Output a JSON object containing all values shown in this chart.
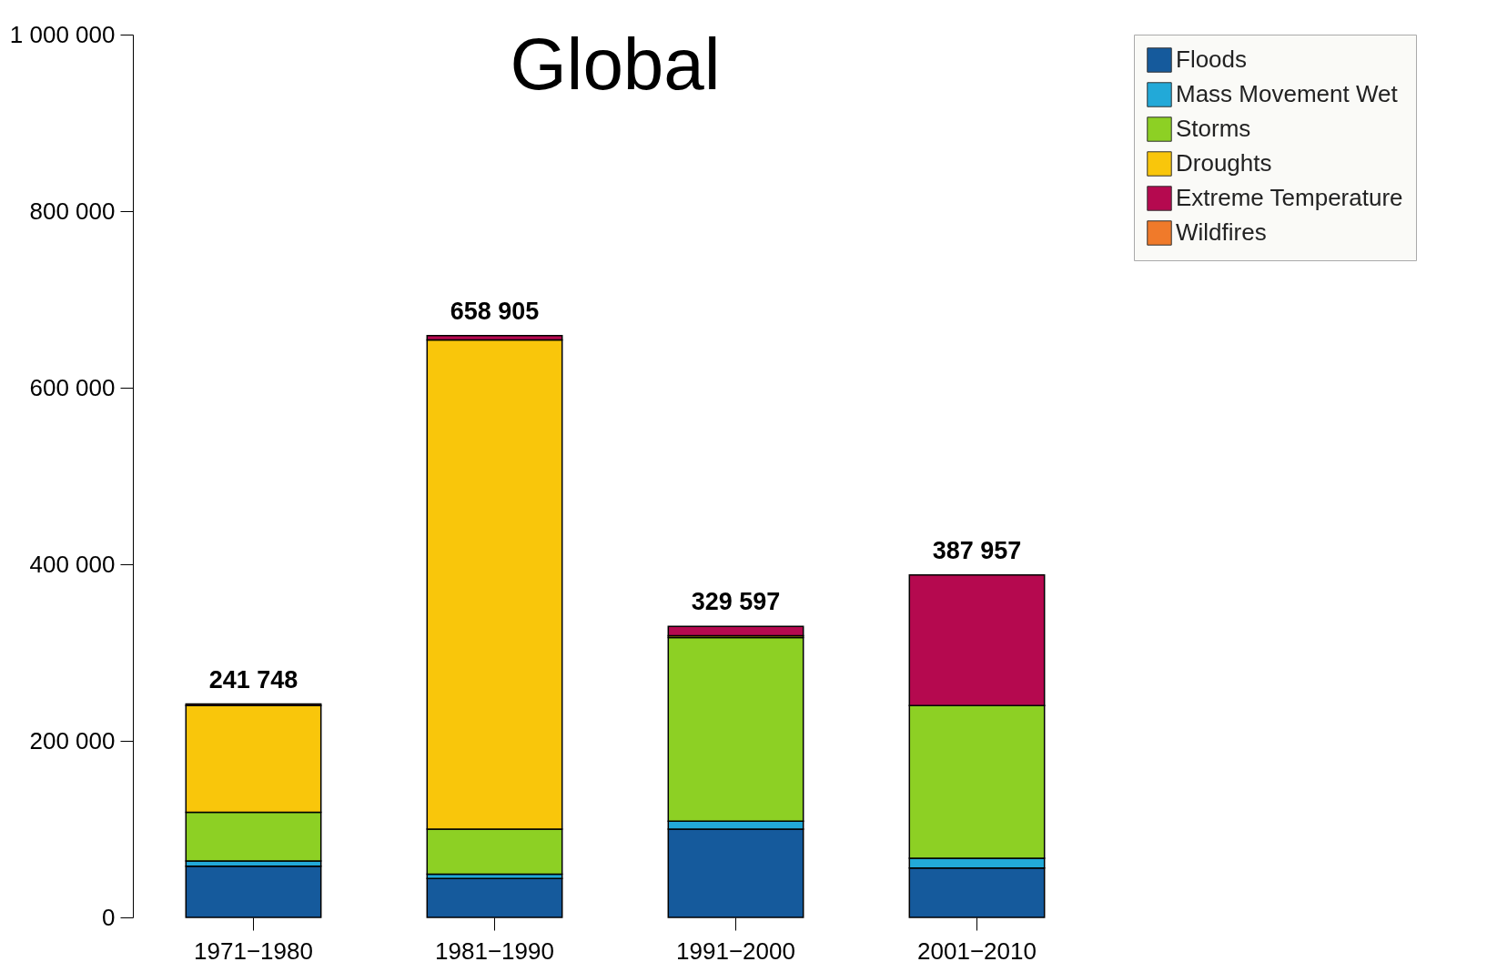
{
  "chart_data": {
    "type": "bar",
    "title": "Global",
    "stacked": true,
    "categories": [
      "1971−1980",
      "1981−1990",
      "1991−2000",
      "2001−2010"
    ],
    "series": [
      {
        "name": "Floods",
        "color": "#155a9c",
        "values": [
          58000,
          44000,
          100000,
          56000
        ]
      },
      {
        "name": "Mass Movement Wet",
        "color": "#22a9d8",
        "values": [
          6000,
          5000,
          9000,
          11000
        ]
      },
      {
        "name": "Storms",
        "color": "#8dd024",
        "values": [
          55000,
          51000,
          208000,
          173000
        ]
      },
      {
        "name": "Droughts",
        "color": "#f9c60b",
        "values": [
          121000,
          554000,
          2000,
          null
        ]
      },
      {
        "name": "Extreme Temperature",
        "color": "#b5094f",
        "values": [
          1748,
          4905,
          10597,
          147957
        ]
      },
      {
        "name": "Wildfires",
        "color": "#f07a2a",
        "values": [
          null,
          null,
          null,
          null
        ]
      }
    ],
    "totals": [
      "241 748",
      "658 905",
      "329 597",
      "387 957"
    ],
    "ylim": [
      0,
      1000000
    ],
    "yticks": [
      {
        "value": 0,
        "label": "0"
      },
      {
        "value": 200000,
        "label": "200 000"
      },
      {
        "value": 400000,
        "label": "400 000"
      },
      {
        "value": 600000,
        "label": "600 000"
      },
      {
        "value": 800000,
        "label": "800 000"
      },
      {
        "value": 1000000,
        "label": "1 000 000"
      }
    ],
    "grid": false,
    "legend": "right"
  }
}
